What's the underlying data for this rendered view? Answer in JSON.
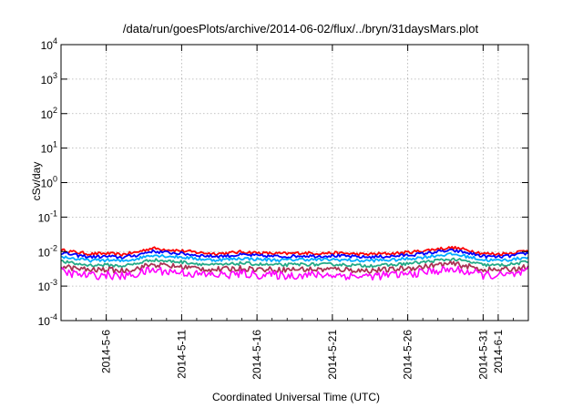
{
  "chart_data": {
    "type": "line",
    "title": "/data/run/goesPlots/archive/2014-06-02/flux/../bryn/31daysMars.plot",
    "xlabel": "Coordinated Universal Time (UTC)",
    "ylabel": "cSv/day",
    "yscale": "log",
    "ylim": [
      0.0001,
      10000
    ],
    "y_ticks": [
      {
        "base": "10",
        "exp": "-4"
      },
      {
        "base": "10",
        "exp": "-3"
      },
      {
        "base": "10",
        "exp": "-2"
      },
      {
        "base": "10",
        "exp": "-1"
      },
      {
        "base": "10",
        "exp": "0"
      },
      {
        "base": "10",
        "exp": "1"
      },
      {
        "base": "10",
        "exp": "2"
      },
      {
        "base": "10",
        "exp": "3"
      },
      {
        "base": "10",
        "exp": "4"
      }
    ],
    "xlim": [
      "2014-05-03",
      "2014-06-03"
    ],
    "x_ticks": [
      "2014-5-6",
      "2014-5-11",
      "2014-5-16",
      "2014-5-21",
      "2014-5-26",
      "2014-5-31",
      "2014-6-1"
    ],
    "grid": true,
    "x": [
      "2014-05-03",
      "2014-05-04",
      "2014-05-05",
      "2014-05-06",
      "2014-05-07",
      "2014-05-08",
      "2014-05-09",
      "2014-05-10",
      "2014-05-11",
      "2014-05-12",
      "2014-05-13",
      "2014-05-14",
      "2014-05-15",
      "2014-05-16",
      "2014-05-17",
      "2014-05-18",
      "2014-05-19",
      "2014-05-20",
      "2014-05-21",
      "2014-05-22",
      "2014-05-23",
      "2014-05-24",
      "2014-05-25",
      "2014-05-26",
      "2014-05-27",
      "2014-05-28",
      "2014-05-29",
      "2014-05-30",
      "2014-05-31",
      "2014-06-01",
      "2014-06-02",
      "2014-06-03"
    ],
    "series": [
      {
        "color": "#ff0000",
        "values": [
          0.011,
          0.0095,
          0.0085,
          0.0088,
          0.0082,
          0.0095,
          0.0125,
          0.0115,
          0.0105,
          0.0095,
          0.0088,
          0.009,
          0.0098,
          0.0092,
          0.0088,
          0.0087,
          0.0092,
          0.0089,
          0.0091,
          0.0088,
          0.0083,
          0.0086,
          0.0088,
          0.0095,
          0.0105,
          0.012,
          0.013,
          0.011,
          0.0088,
          0.0085,
          0.0092,
          0.011
        ]
      },
      {
        "color": "#0000ff",
        "values": [
          0.0092,
          0.0078,
          0.007,
          0.0072,
          0.0068,
          0.0078,
          0.0102,
          0.0094,
          0.0088,
          0.0079,
          0.0073,
          0.0075,
          0.0081,
          0.0076,
          0.0073,
          0.0072,
          0.0076,
          0.0074,
          0.0076,
          0.0073,
          0.0069,
          0.0071,
          0.0073,
          0.0079,
          0.0087,
          0.0099,
          0.0107,
          0.0091,
          0.0073,
          0.007,
          0.0076,
          0.0091
        ]
      },
      {
        "color": "#00aaff",
        "values": [
          0.0072,
          0.0061,
          0.0055,
          0.0057,
          0.0053,
          0.0061,
          0.008,
          0.0074,
          0.0069,
          0.0062,
          0.0057,
          0.0059,
          0.0064,
          0.006,
          0.0057,
          0.0057,
          0.006,
          0.0058,
          0.0059,
          0.0057,
          0.0054,
          0.0056,
          0.0057,
          0.0062,
          0.0068,
          0.0078,
          0.0084,
          0.0071,
          0.0057,
          0.0055,
          0.0059,
          0.0071
        ]
      },
      {
        "color": "#22aa88",
        "values": [
          0.0052,
          0.0044,
          0.004,
          0.0041,
          0.0038,
          0.0044,
          0.0058,
          0.0053,
          0.005,
          0.0045,
          0.0041,
          0.0042,
          0.0046,
          0.0043,
          0.0041,
          0.0041,
          0.0043,
          0.0042,
          0.0043,
          0.0041,
          0.0039,
          0.004,
          0.0041,
          0.0045,
          0.0049,
          0.0056,
          0.006,
          0.0051,
          0.0041,
          0.004,
          0.0043,
          0.0051
        ]
      },
      {
        "color": "#aa3355",
        "values": [
          0.0038,
          0.0032,
          0.0029,
          0.003,
          0.0028,
          0.0032,
          0.0042,
          0.0039,
          0.0036,
          0.0033,
          0.003,
          0.0031,
          0.0033,
          0.0031,
          0.003,
          0.003,
          0.0031,
          0.003,
          0.0031,
          0.003,
          0.0028,
          0.0029,
          0.003,
          0.0033,
          0.0036,
          0.0041,
          0.0044,
          0.0037,
          0.003,
          0.0029,
          0.0031,
          0.0037
        ]
      },
      {
        "color": "#ff00ff",
        "values": [
          0.0026,
          0.0022,
          0.002,
          0.0021,
          0.0019,
          0.0022,
          0.0029,
          0.0027,
          0.0025,
          0.0022,
          0.0021,
          0.0021,
          0.0023,
          0.0021,
          0.0021,
          0.002,
          0.0021,
          0.0021,
          0.0021,
          0.002,
          0.0019,
          0.002,
          0.0021,
          0.0022,
          0.0025,
          0.0028,
          0.003,
          0.0026,
          0.0021,
          0.002,
          0.0021,
          0.0026
        ]
      }
    ]
  }
}
